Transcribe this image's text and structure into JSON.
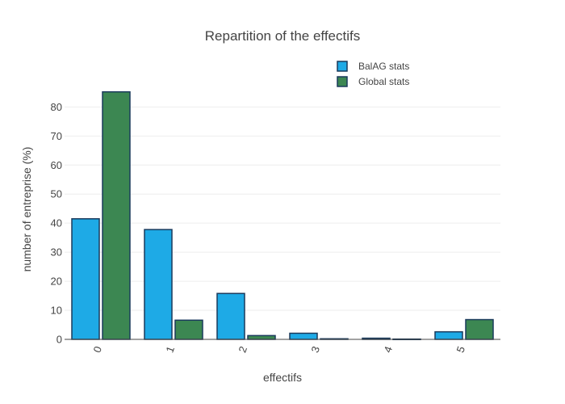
{
  "chart_data": {
    "type": "bar",
    "title": "Repartition of the effectifs",
    "xlabel": "effectifs",
    "ylabel": "number of entreprise (%)",
    "categories": [
      "0",
      "1",
      "2",
      "3",
      "4",
      "5"
    ],
    "series": [
      {
        "name": "BalAG stats",
        "color": "#1eaae6",
        "values": [
          41.5,
          37.8,
          15.8,
          2.1,
          0.4,
          2.6
        ]
      },
      {
        "name": "Global stats",
        "color": "#3c8752",
        "values": [
          85.2,
          6.6,
          1.3,
          0.2,
          0.1,
          6.8
        ]
      }
    ],
    "ylim": [
      0,
      89
    ],
    "yticks": [
      0,
      10,
      20,
      30,
      40,
      50,
      60,
      70,
      80
    ],
    "grid": true,
    "legend": "top-right",
    "bar_outline_color": "#1a3a5c"
  }
}
